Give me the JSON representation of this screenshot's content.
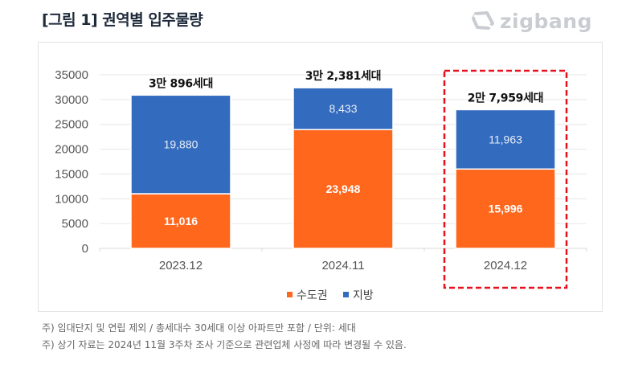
{
  "header": {
    "title": "[그림 1] 권역별 입주물량",
    "logo_text": "zigbang",
    "logo_icon": "zigbang-logo-icon"
  },
  "colors": {
    "capital": "#FF671D",
    "regional": "#336BBE",
    "highlight": "#E8101C",
    "grid": "#E6E6E6"
  },
  "chart_data": {
    "type": "bar",
    "stacked": true,
    "title": "[그림 1] 권역별 입주물량",
    "xlabel": "",
    "ylabel": "",
    "categories": [
      "2023.12",
      "2024.11",
      "2024.12"
    ],
    "series": [
      {
        "name": "수도권",
        "values": [
          11016,
          23948,
          15996
        ],
        "labels": [
          "11,016",
          "23,948",
          "15,996"
        ],
        "label_bold": true
      },
      {
        "name": "지방",
        "values": [
          19880,
          8433,
          11963
        ],
        "labels": [
          "19,880",
          "8,433",
          "11,963"
        ],
        "label_bold": false
      }
    ],
    "totals": [
      30896,
      32381,
      27959
    ],
    "total_labels": [
      "3만 896세대",
      "3만 2,381세대",
      "2만 7,959세대"
    ],
    "ylim": [
      0,
      35000
    ],
    "yticks": [
      0,
      5000,
      10000,
      15000,
      20000,
      25000,
      30000,
      35000
    ],
    "grid": true,
    "legend": {
      "position": "bottom",
      "entries": [
        "수도권",
        "지방"
      ]
    },
    "highlighted_category": "2024.12"
  },
  "notes": [
    "주) 임대단지 및 연립 제외 / 총세대수 30세대 이상 아파트만 포함 / 단위: 세대",
    "주) 상기 자료는 2024년 11월 3주차 조사 기준으로 관련업체 사정에 따라 변경될 수 있음."
  ]
}
